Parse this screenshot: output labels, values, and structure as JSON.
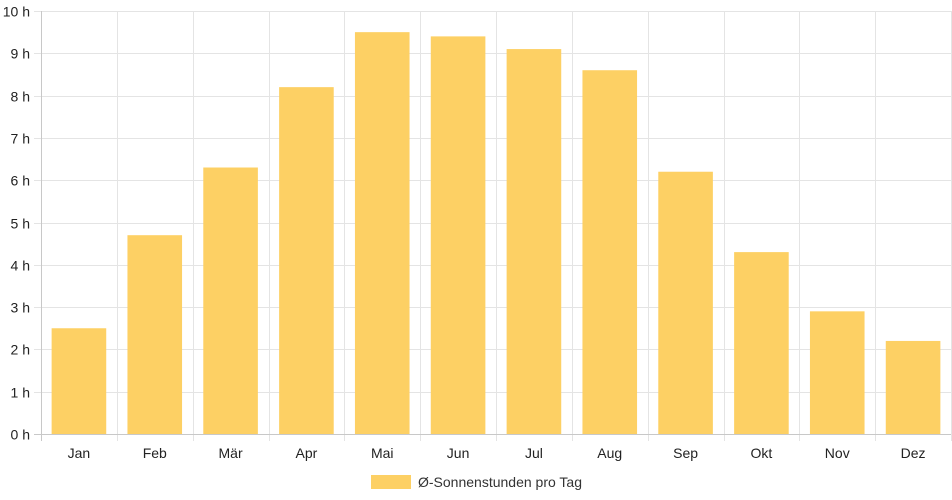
{
  "chart_data": {
    "type": "bar",
    "categories": [
      "Jan",
      "Feb",
      "Mär",
      "Apr",
      "Mai",
      "Jun",
      "Jul",
      "Aug",
      "Sep",
      "Okt",
      "Nov",
      "Dez"
    ],
    "series": [
      {
        "name": "Ø-Sonnenstunden pro Tag",
        "values": [
          2.5,
          4.7,
          6.3,
          8.2,
          9.5,
          9.4,
          9.1,
          8.6,
          6.2,
          4.3,
          2.9,
          2.2
        ],
        "color": "#fdd064"
      }
    ],
    "ylim": [
      0,
      10
    ],
    "yticks": [
      "0 h",
      "1 h",
      "2 h",
      "3 h",
      "4 h",
      "5 h",
      "6 h",
      "7 h",
      "8 h",
      "9 h",
      "10 h"
    ],
    "grid": true,
    "legend_position": "bottom"
  }
}
